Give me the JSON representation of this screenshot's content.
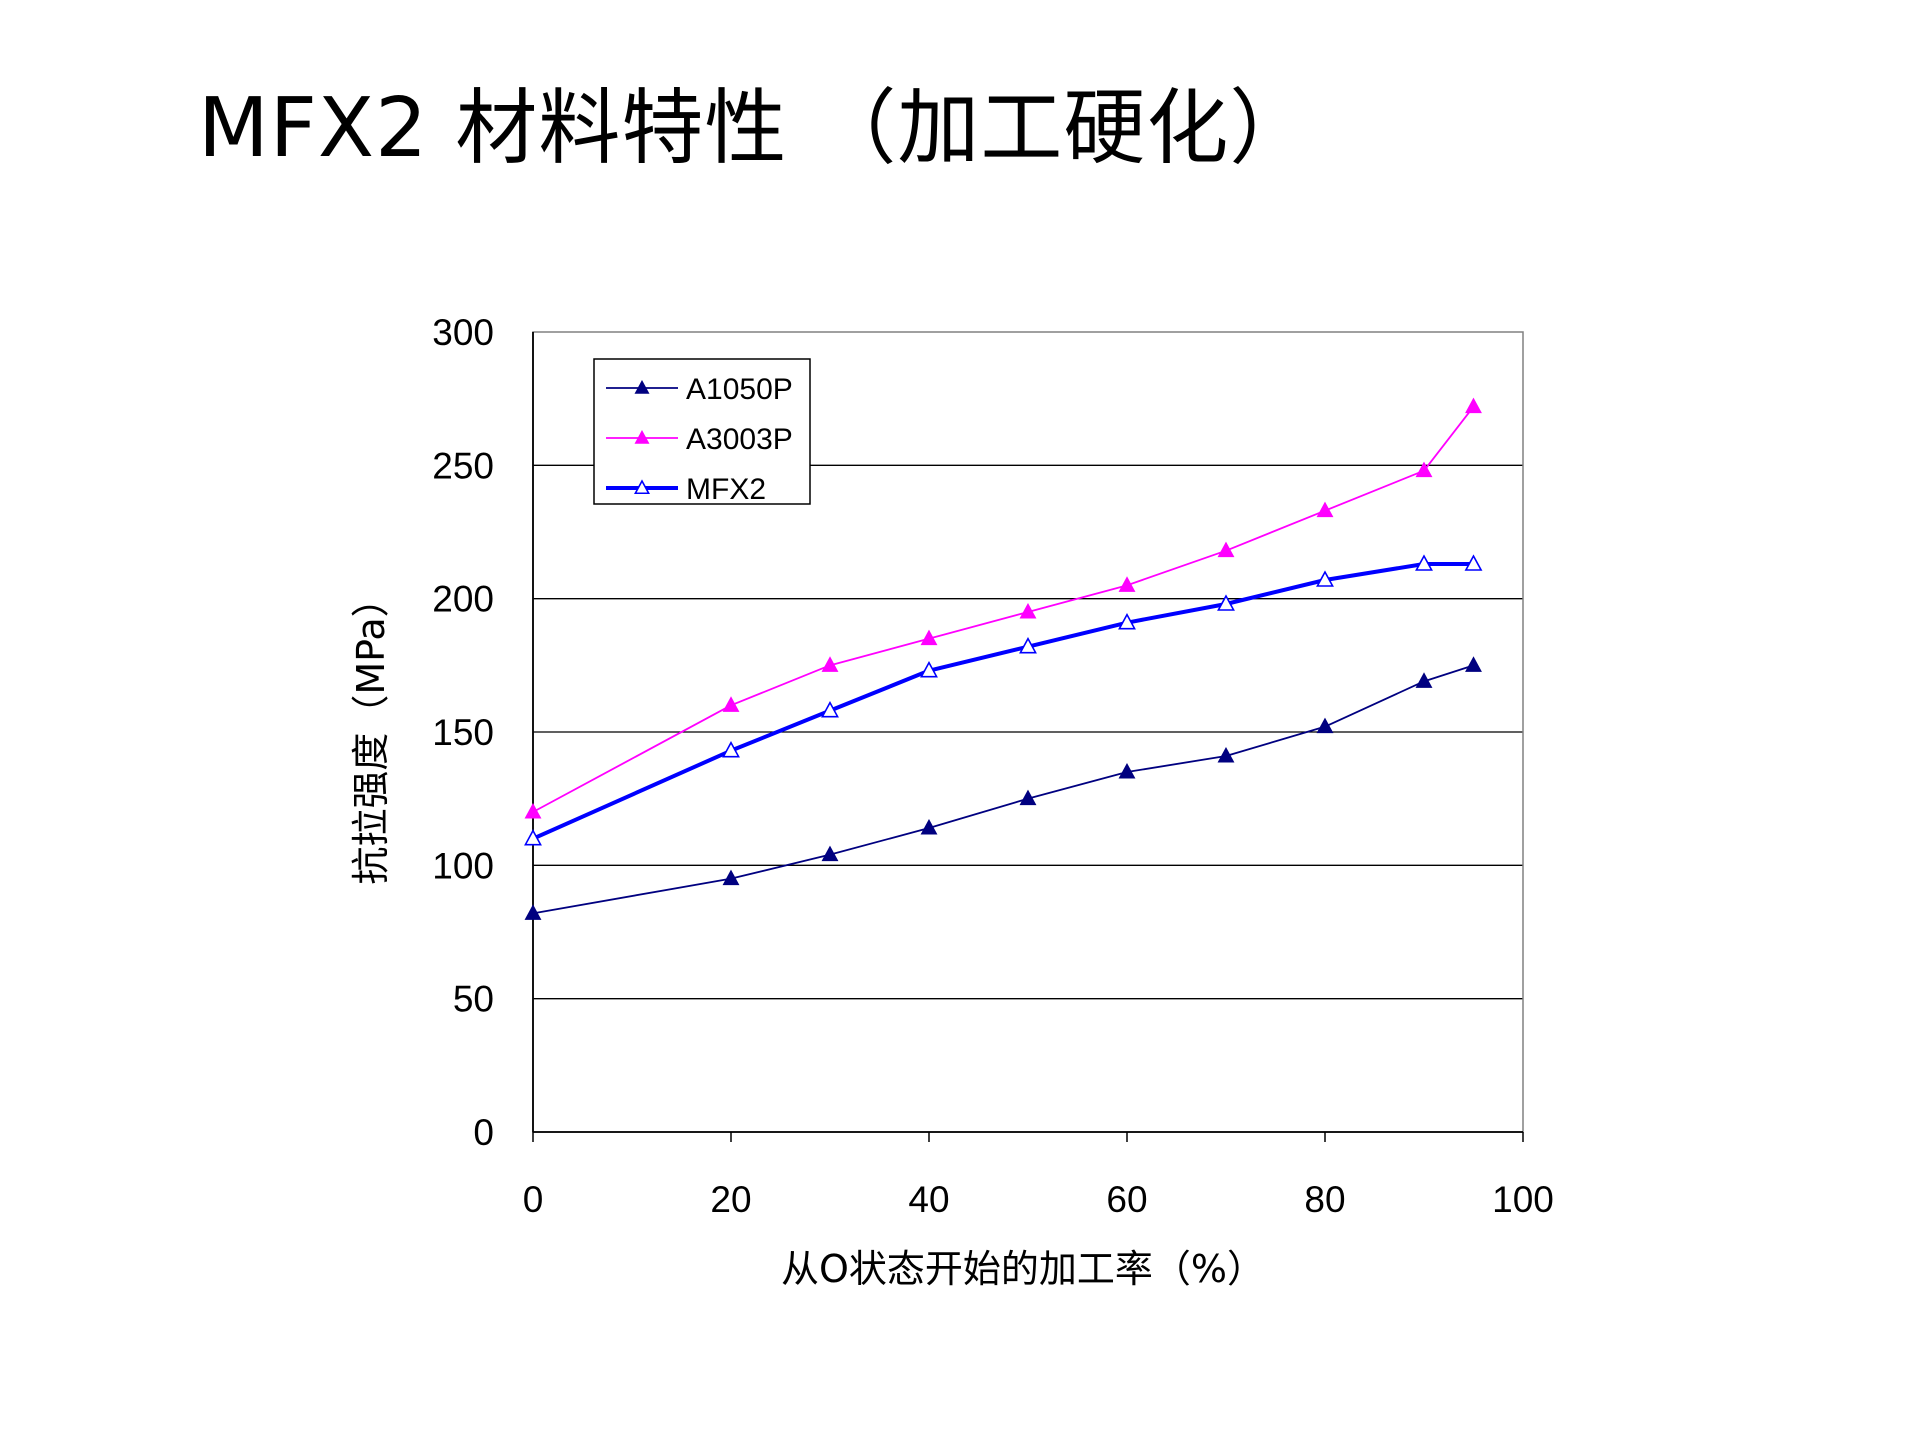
{
  "page": {
    "title": "MFX2  材料特性 （加工硬化）"
  },
  "chart_data": {
    "type": "line",
    "xlabel": "从O状态开始的加工率（%）",
    "ylabel": "抗拉强度（MPa）",
    "xlim": [
      0,
      100
    ],
    "ylim": [
      0,
      300
    ],
    "xticks": [
      0,
      20,
      40,
      60,
      80,
      100
    ],
    "yticks": [
      0,
      50,
      100,
      150,
      200,
      250,
      300
    ],
    "grid": "horizontal",
    "legend_position": "top-left",
    "series": [
      {
        "name": "A1050P",
        "color": "#000080",
        "marker": "filled-triangle",
        "line_width": "thin",
        "points": [
          [
            0,
            82
          ],
          [
            20,
            95
          ],
          [
            30,
            104
          ],
          [
            40,
            114
          ],
          [
            50,
            125
          ],
          [
            60,
            135
          ],
          [
            70,
            141
          ],
          [
            80,
            152
          ],
          [
            90,
            169
          ],
          [
            95,
            175
          ]
        ]
      },
      {
        "name": "A3003P",
        "color": "#FF00FF",
        "marker": "filled-triangle",
        "line_width": "thin",
        "points": [
          [
            0,
            120
          ],
          [
            20,
            160
          ],
          [
            30,
            175
          ],
          [
            40,
            185
          ],
          [
            50,
            195
          ],
          [
            60,
            205
          ],
          [
            70,
            218
          ],
          [
            80,
            233
          ],
          [
            90,
            248
          ],
          [
            95,
            272
          ]
        ]
      },
      {
        "name": "MFX2",
        "color": "#0000FF",
        "marker": "open-triangle",
        "line_width": "thick",
        "points": [
          [
            0,
            110
          ],
          [
            20,
            143
          ],
          [
            30,
            158
          ],
          [
            40,
            173
          ],
          [
            50,
            182
          ],
          [
            60,
            191
          ],
          [
            70,
            198
          ],
          [
            80,
            207
          ],
          [
            90,
            213
          ],
          [
            95,
            213
          ]
        ]
      }
    ]
  }
}
